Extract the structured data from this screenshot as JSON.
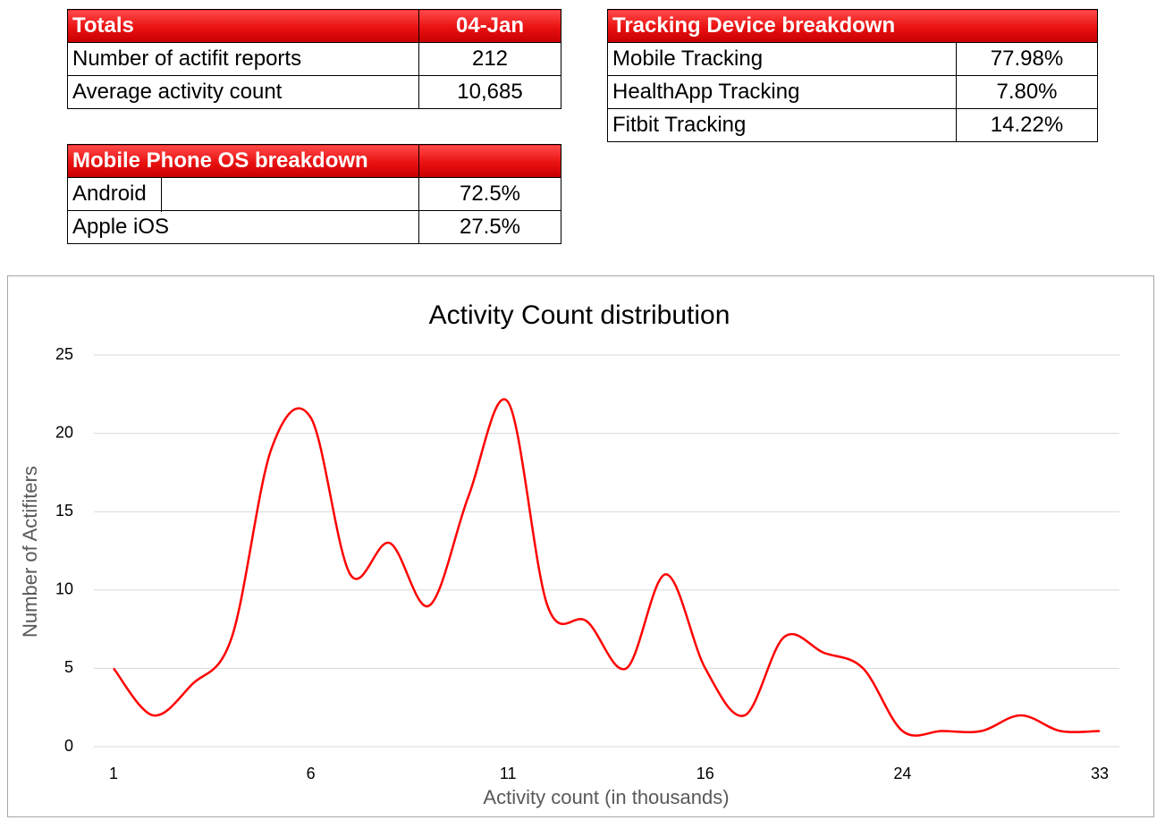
{
  "tables": {
    "totals": {
      "header": [
        "Totals",
        "04-Jan"
      ],
      "rows": [
        [
          "Number of actifit reports",
          "212"
        ],
        [
          "Average activity count",
          "10,685"
        ]
      ]
    },
    "tracking": {
      "header": [
        "Tracking Device breakdown"
      ],
      "rows": [
        [
          "Mobile Tracking",
          "77.98%"
        ],
        [
          "HealthApp Tracking",
          "7.80%"
        ],
        [
          "Fitbit Tracking",
          "14.22%"
        ]
      ]
    },
    "os": {
      "header": [
        "Mobile Phone OS breakdown"
      ],
      "rows": [
        [
          "Android",
          "72.5%"
        ],
        [
          "Apple iOS",
          "27.5%"
        ]
      ]
    }
  },
  "chart_data": {
    "type": "line",
    "title": "Activity Count distribution",
    "x_label": "Activity count (in thousands)",
    "y_label": "Number of Actifiters",
    "categories": [
      1,
      null,
      null,
      null,
      null,
      6,
      null,
      null,
      null,
      null,
      11,
      null,
      null,
      null,
      null,
      16,
      null,
      null,
      null,
      null,
      24,
      null,
      null,
      null,
      null,
      33
    ],
    "series": [
      {
        "name": "Number of Actifiters",
        "color": "#ff0000",
        "values": [
          5,
          2,
          4,
          7,
          19,
          21,
          11,
          13,
          9,
          16,
          22,
          9,
          8,
          5,
          11,
          5,
          2,
          7,
          6,
          5,
          1,
          1,
          1,
          2,
          1,
          1
        ]
      }
    ],
    "ylim": [
      0,
      25
    ],
    "yticks": [
      0,
      5,
      10,
      15,
      20,
      25
    ],
    "grid": true,
    "smooth": true
  }
}
